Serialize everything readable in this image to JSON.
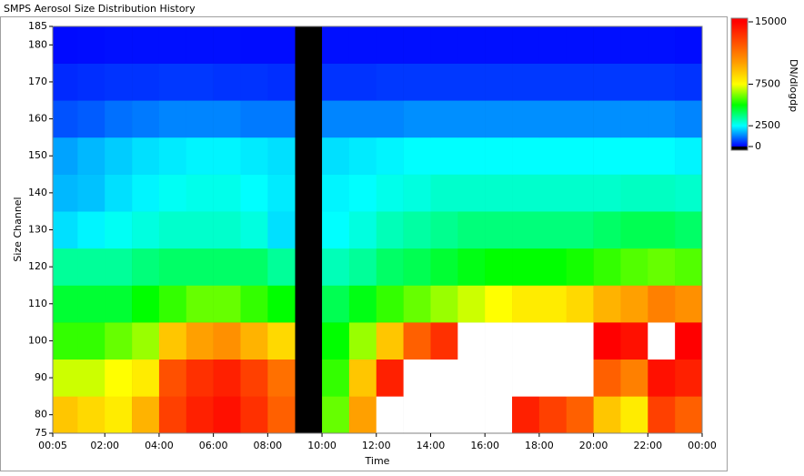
{
  "chart_data": {
    "type": "heatmap",
    "title": "SMPS Aerosol Size Distribution History",
    "x_label": "Time",
    "y_label": "Size Channel",
    "colorbar_label": "DN/dlogdp",
    "xlim": [
      5,
      1440
    ],
    "xticks": [
      {
        "value": 5,
        "label": "00:05"
      },
      {
        "value": 120,
        "label": "02:00"
      },
      {
        "value": 240,
        "label": "04:00"
      },
      {
        "value": 360,
        "label": "06:00"
      },
      {
        "value": 480,
        "label": "08:00"
      },
      {
        "value": 600,
        "label": "10:00"
      },
      {
        "value": 720,
        "label": "12:00"
      },
      {
        "value": 840,
        "label": "14:00"
      },
      {
        "value": 960,
        "label": "16:00"
      },
      {
        "value": 1080,
        "label": "18:00"
      },
      {
        "value": 1200,
        "label": "20:00"
      },
      {
        "value": 1320,
        "label": "22:00"
      },
      {
        "value": 1440,
        "label": "00:00"
      }
    ],
    "ylim": [
      75,
      185
    ],
    "yticks": [
      75,
      80,
      90,
      100,
      110,
      120,
      130,
      140,
      150,
      160,
      170,
      180,
      185
    ],
    "zlim": [
      0,
      15000
    ],
    "zticks": [
      0,
      2500,
      7500,
      15000
    ],
    "colorscale": [
      "#0000ff",
      "#00ffff",
      "#00ff00",
      "#ffff00",
      "#ffa000",
      "#ff5000",
      "#ff0000"
    ],
    "over_color": "#ffffff",
    "background": "#000000",
    "x_bins": [
      5,
      60,
      120,
      180,
      240,
      300,
      360,
      420,
      480,
      540,
      600,
      660,
      720,
      780,
      840,
      900,
      960,
      1020,
      1080,
      1140,
      1200,
      1260,
      1320,
      1380,
      1440
    ],
    "y_bins": [
      75,
      85,
      95,
      105,
      115,
      125,
      135,
      145,
      155,
      165,
      175,
      185
    ],
    "z": [
      [
        9000,
        8500,
        8000,
        9500,
        13000,
        14000,
        14500,
        13500,
        12000,
        null,
        6000,
        10000,
        16000,
        16000,
        16000,
        16000,
        16000,
        14000,
        13000,
        12000,
        9000,
        8000,
        13000,
        12000
      ],
      [
        7000,
        7000,
        7500,
        8000,
        12500,
        13500,
        14000,
        13000,
        11500,
        null,
        5500,
        9000,
        14000,
        16000,
        16000,
        16000,
        16000,
        16000,
        16000,
        16000,
        12000,
        11000,
        14500,
        14000
      ],
      [
        5500,
        5500,
        6000,
        6500,
        9000,
        10000,
        10500,
        9500,
        8500,
        null,
        5000,
        6500,
        9000,
        12000,
        13500,
        16000,
        16000,
        16000,
        16000,
        16000,
        15000,
        14500,
        16000,
        15000
      ],
      [
        4500,
        4500,
        4500,
        5000,
        5500,
        6000,
        6000,
        5500,
        5000,
        null,
        4200,
        4800,
        5500,
        6000,
        6500,
        7000,
        7500,
        8000,
        8000,
        8500,
        9500,
        10000,
        11000,
        10500
      ],
      [
        3500,
        3500,
        3500,
        3800,
        4000,
        4000,
        4000,
        4000,
        3500,
        null,
        3200,
        3500,
        4000,
        4200,
        4500,
        4800,
        5000,
        5000,
        5000,
        5200,
        5500,
        5800,
        6000,
        5800
      ],
      [
        2200,
        2400,
        2600,
        2800,
        3000,
        3000,
        3000,
        2800,
        2200,
        null,
        2500,
        2800,
        3200,
        3400,
        3600,
        3800,
        3800,
        3800,
        3800,
        3800,
        4000,
        4200,
        4200,
        4000
      ],
      [
        1800,
        1900,
        2200,
        2400,
        2600,
        2700,
        2700,
        2500,
        2300,
        null,
        2400,
        2500,
        2700,
        2800,
        3000,
        3000,
        3000,
        3000,
        3000,
        3000,
        3000,
        3100,
        3100,
        3000
      ],
      [
        1600,
        1800,
        2000,
        2200,
        2300,
        2400,
        2400,
        2300,
        2200,
        null,
        2200,
        2300,
        2400,
        2500,
        2500,
        2500,
        2500,
        2500,
        2500,
        2500,
        2500,
        2500,
        2500,
        2400
      ],
      [
        800,
        900,
        1100,
        1200,
        1300,
        1300,
        1300,
        1200,
        1200,
        null,
        1300,
        1300,
        1300,
        1400,
        1400,
        1400,
        1400,
        1400,
        1400,
        1400,
        1400,
        1400,
        1400,
        1300
      ],
      [
        400,
        450,
        500,
        500,
        550,
        550,
        500,
        500,
        450,
        null,
        500,
        500,
        550,
        550,
        550,
        550,
        550,
        550,
        550,
        550,
        550,
        550,
        550,
        500
      ],
      [
        100,
        120,
        150,
        150,
        150,
        150,
        150,
        120,
        120,
        null,
        150,
        150,
        150,
        150,
        150,
        150,
        150,
        150,
        150,
        150,
        150,
        150,
        150,
        120
      ]
    ]
  }
}
